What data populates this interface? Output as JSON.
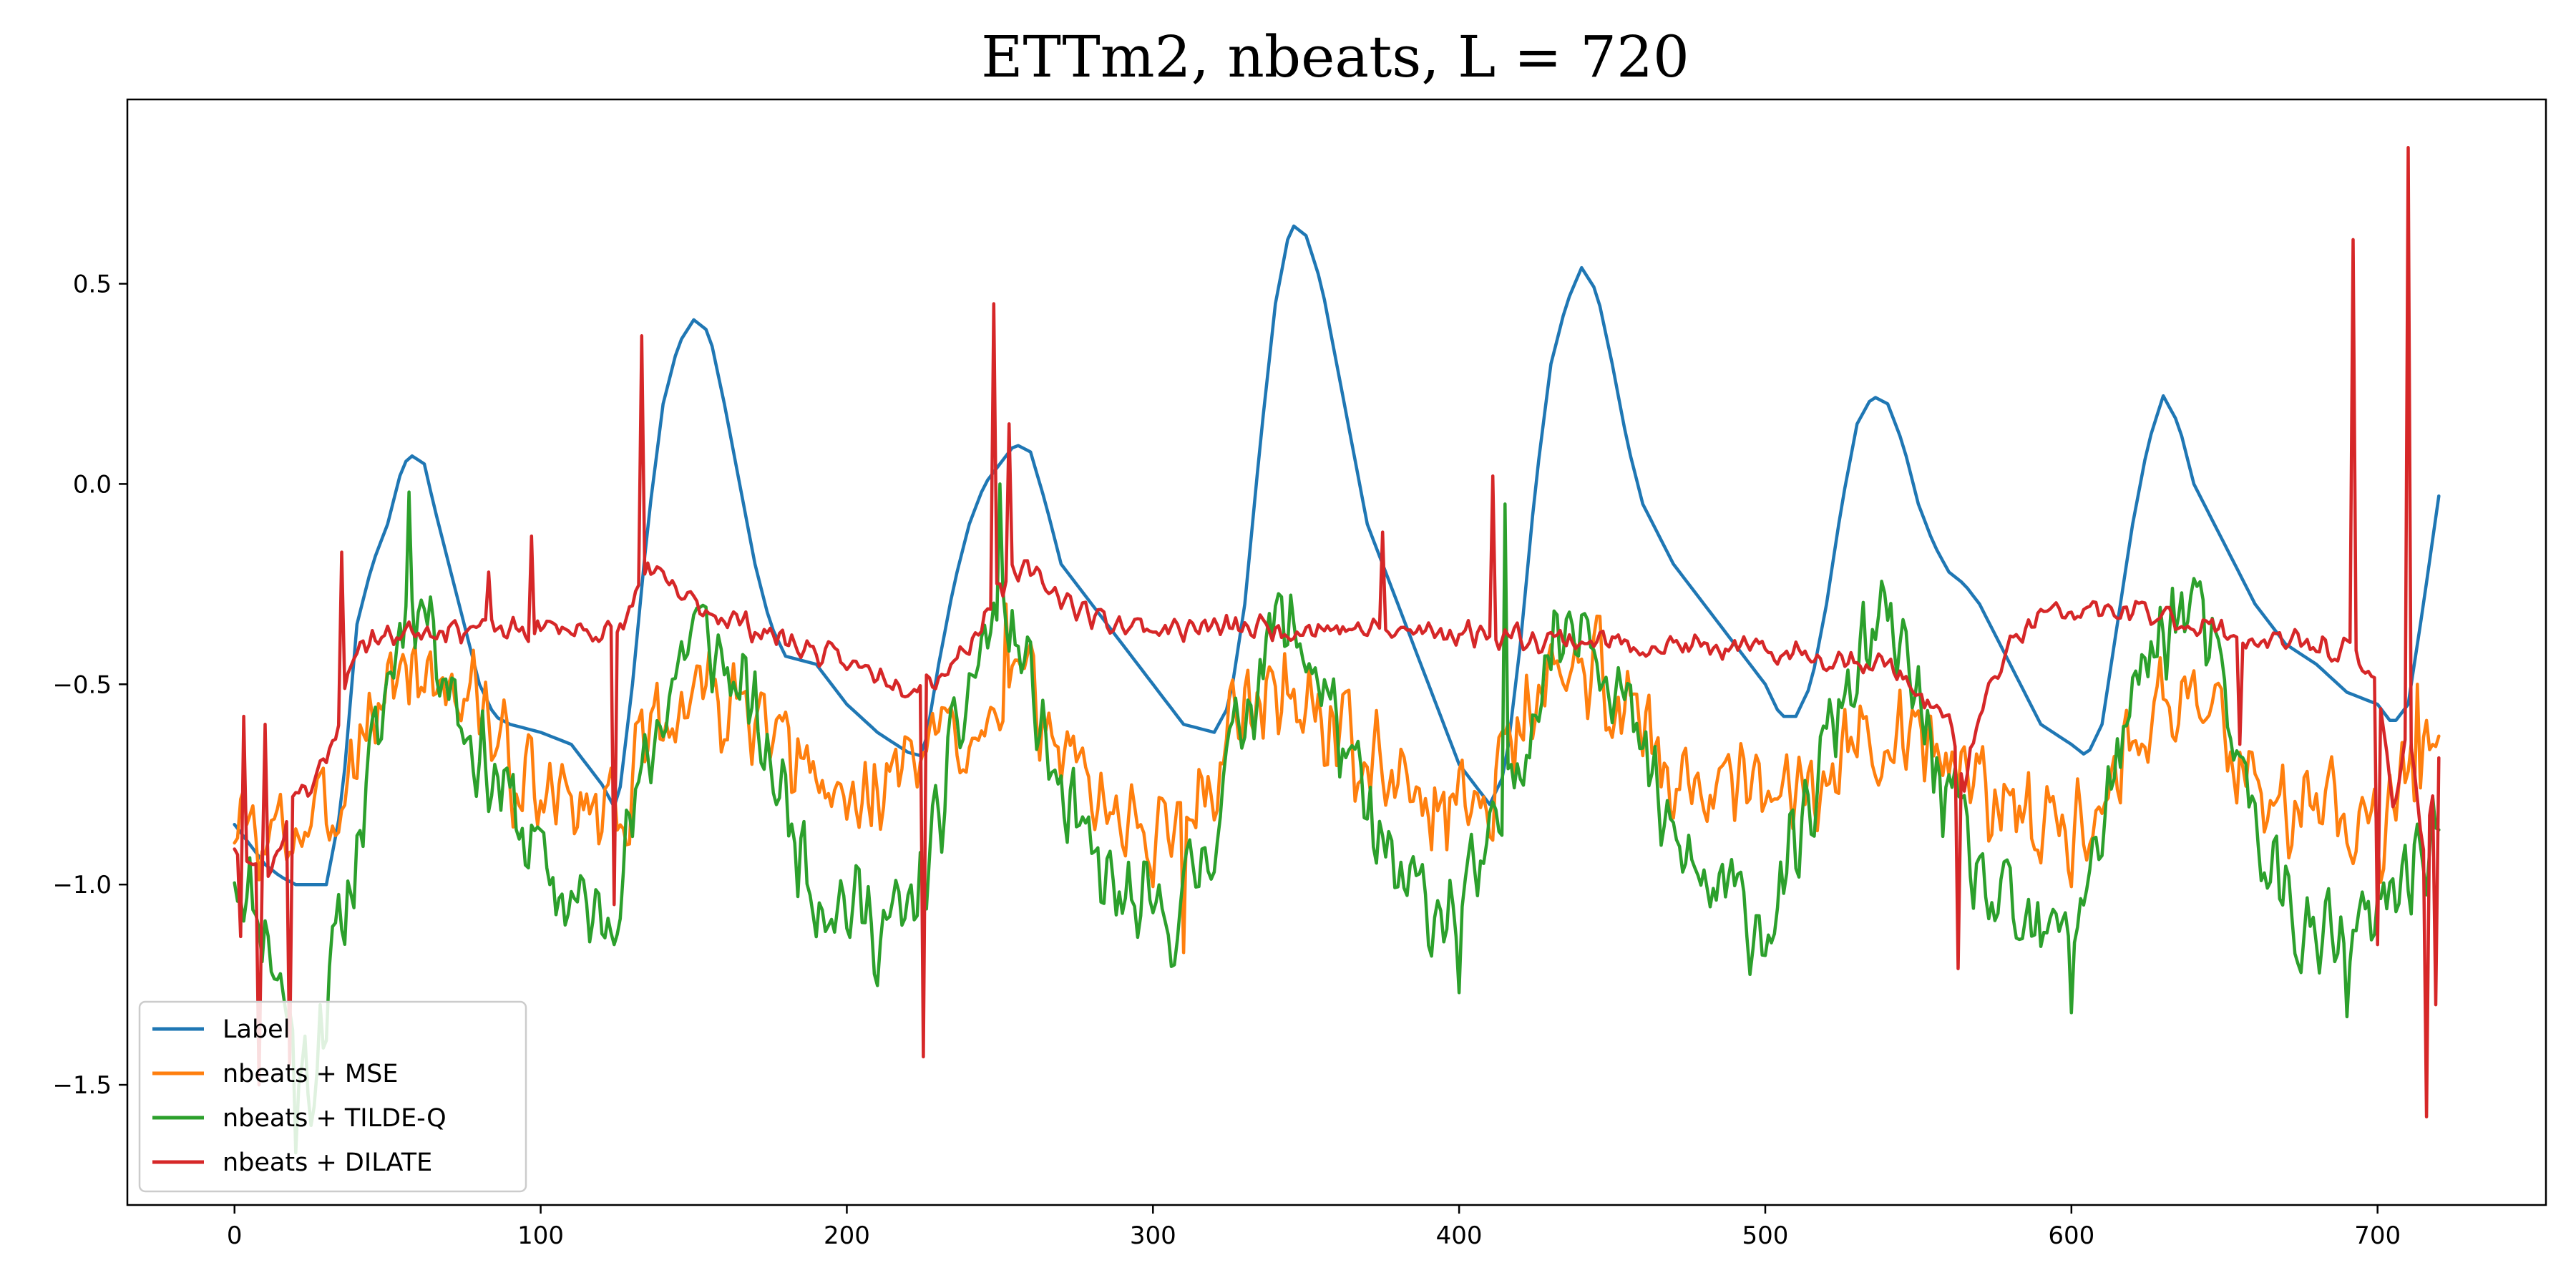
{
  "chart_data": {
    "type": "line",
    "title": "ETTm2, nbeats, L = 720",
    "xlabel": "",
    "ylabel": "",
    "xlim": [
      -35,
      755
    ],
    "ylim": [
      -1.8,
      0.96
    ],
    "xticks": [
      0,
      100,
      200,
      300,
      400,
      500,
      600,
      700
    ],
    "yticks": [
      -1.5,
      -1.0,
      -0.5,
      0.0,
      0.5
    ],
    "ytick_labels": [
      "−1.5",
      "−1.0",
      "−0.5",
      "0.0",
      "0.5"
    ],
    "grid": false,
    "legend_position": "lower-left",
    "series": [
      {
        "name": "Label",
        "color": "#1f77b4",
        "kind": "smooth",
        "x": [
          0,
          5,
          10,
          15,
          20,
          25,
          30,
          35,
          40,
          45,
          50,
          55,
          58,
          62,
          65,
          70,
          75,
          80,
          85,
          90,
          100,
          110,
          120,
          125,
          130,
          135,
          140,
          145,
          150,
          155,
          160,
          165,
          170,
          175,
          180,
          190,
          200,
          210,
          220,
          225,
          230,
          235,
          240,
          245,
          250,
          255,
          260,
          265,
          270,
          280,
          290,
          300,
          310,
          320,
          325,
          330,
          335,
          340,
          345,
          350,
          355,
          360,
          365,
          370,
          380,
          390,
          400,
          410,
          415,
          420,
          425,
          430,
          435,
          440,
          445,
          450,
          455,
          460,
          470,
          480,
          490,
          500,
          505,
          510,
          515,
          520,
          525,
          530,
          535,
          540,
          545,
          550,
          555,
          560,
          565,
          570,
          580,
          590,
          600,
          605,
          610,
          615,
          620,
          625,
          630,
          635,
          640,
          650,
          660,
          670,
          680,
          690,
          700,
          705,
          710,
          715,
          720
        ],
        "y": [
          -0.85,
          -0.9,
          -0.95,
          -0.98,
          -1.0,
          -1.0,
          -1.0,
          -0.8,
          -0.35,
          -0.2,
          -0.1,
          0.05,
          0.07,
          0.05,
          -0.05,
          -0.2,
          -0.35,
          -0.5,
          -0.58,
          -0.6,
          -0.62,
          -0.65,
          -0.75,
          -0.82,
          -0.5,
          -0.1,
          0.2,
          0.35,
          0.41,
          0.38,
          0.2,
          0.0,
          -0.2,
          -0.35,
          -0.43,
          -0.45,
          -0.55,
          -0.62,
          -0.67,
          -0.68,
          -0.45,
          -0.25,
          -0.1,
          0.0,
          0.05,
          0.1,
          0.08,
          -0.05,
          -0.2,
          -0.3,
          -0.4,
          -0.5,
          -0.6,
          -0.62,
          -0.55,
          -0.3,
          0.1,
          0.45,
          0.65,
          0.62,
          0.5,
          0.3,
          0.1,
          -0.1,
          -0.3,
          -0.5,
          -0.7,
          -0.8,
          -0.72,
          -0.4,
          0.0,
          0.3,
          0.45,
          0.54,
          0.48,
          0.3,
          0.1,
          -0.05,
          -0.2,
          -0.3,
          -0.4,
          -0.5,
          -0.58,
          -0.58,
          -0.5,
          -0.3,
          -0.05,
          0.15,
          0.22,
          0.2,
          0.1,
          -0.05,
          -0.15,
          -0.22,
          -0.25,
          -0.3,
          -0.45,
          -0.6,
          -0.65,
          -0.68,
          -0.6,
          -0.35,
          -0.1,
          0.1,
          0.22,
          0.15,
          0.0,
          -0.15,
          -0.3,
          -0.4,
          -0.45,
          -0.52,
          -0.55,
          -0.6,
          -0.55,
          -0.3,
          -0.03
        ]
      },
      {
        "name": "nbeats + MSE",
        "color": "#ff7f0e",
        "kind": "noisy",
        "seed": 3,
        "noise": 0.16,
        "x": [
          0,
          10,
          20,
          30,
          40,
          50,
          60,
          70,
          80,
          90,
          100,
          110,
          120,
          130,
          140,
          150,
          160,
          170,
          180,
          190,
          200,
          210,
          220,
          230,
          240,
          250,
          260,
          270,
          280,
          290,
          300,
          310,
          320,
          330,
          340,
          350,
          360,
          370,
          380,
          390,
          400,
          410,
          420,
          430,
          440,
          450,
          460,
          470,
          480,
          490,
          500,
          510,
          520,
          530,
          540,
          550,
          560,
          570,
          580,
          590,
          600,
          610,
          620,
          630,
          640,
          650,
          660,
          670,
          680,
          690,
          700,
          710,
          720
        ],
        "y": [
          -0.85,
          -0.9,
          -0.85,
          -0.85,
          -0.65,
          -0.5,
          -0.45,
          -0.5,
          -0.55,
          -0.7,
          -0.8,
          -0.8,
          -0.8,
          -0.75,
          -0.6,
          -0.5,
          -0.55,
          -0.6,
          -0.7,
          -0.75,
          -0.8,
          -0.75,
          -0.7,
          -0.65,
          -0.6,
          -0.5,
          -0.55,
          -0.65,
          -0.75,
          -0.85,
          -0.9,
          -0.8,
          -0.7,
          -0.55,
          -0.5,
          -0.55,
          -0.6,
          -0.7,
          -0.75,
          -0.8,
          -0.8,
          -0.75,
          -0.6,
          -0.5,
          -0.45,
          -0.5,
          -0.6,
          -0.7,
          -0.75,
          -0.8,
          -0.8,
          -0.75,
          -0.7,
          -0.65,
          -0.6,
          -0.65,
          -0.7,
          -0.75,
          -0.8,
          -0.85,
          -0.85,
          -0.75,
          -0.6,
          -0.5,
          -0.55,
          -0.65,
          -0.75,
          -0.8,
          -0.8,
          -0.8,
          -0.85,
          -0.75,
          -0.7
        ]
      },
      {
        "name": "nbeats + TILDE-Q",
        "color": "#2ca02c",
        "kind": "noisy",
        "seed": 11,
        "noise": 0.16,
        "x": [
          0,
          10,
          20,
          25,
          30,
          40,
          50,
          57,
          65,
          75,
          90,
          100,
          110,
          120,
          130,
          140,
          150,
          160,
          170,
          180,
          190,
          200,
          210,
          220,
          230,
          240,
          250,
          260,
          270,
          280,
          290,
          300,
          310,
          320,
          330,
          340,
          350,
          360,
          370,
          380,
          390,
          400,
          410,
          420,
          430,
          440,
          450,
          460,
          470,
          480,
          490,
          500,
          510,
          520,
          530,
          540,
          550,
          560,
          570,
          580,
          590,
          600,
          610,
          620,
          630,
          640,
          650,
          660,
          670,
          680,
          690,
          700,
          710,
          720
        ],
        "y": [
          -0.95,
          -1.1,
          -1.4,
          -1.5,
          -1.3,
          -0.9,
          -0.5,
          -0.25,
          -0.35,
          -0.6,
          -0.8,
          -0.95,
          -1.05,
          -1.1,
          -0.85,
          -0.55,
          -0.35,
          -0.45,
          -0.6,
          -0.8,
          -1.0,
          -1.05,
          -1.1,
          -1.1,
          -0.85,
          -0.5,
          -0.3,
          -0.5,
          -0.8,
          -0.95,
          -1.05,
          -1.1,
          -1.05,
          -0.85,
          -0.55,
          -0.35,
          -0.4,
          -0.6,
          -0.85,
          -1.0,
          -1.05,
          -1.05,
          -0.95,
          -0.65,
          -0.4,
          -0.3,
          -0.45,
          -0.7,
          -0.9,
          -1.0,
          -1.05,
          -1.1,
          -0.95,
          -0.65,
          -0.45,
          -0.35,
          -0.55,
          -0.8,
          -1.0,
          -1.1,
          -1.15,
          -1.1,
          -0.85,
          -0.55,
          -0.35,
          -0.3,
          -0.55,
          -0.85,
          -1.05,
          -1.15,
          -1.15,
          -1.1,
          -0.95,
          -0.85
        ]
      },
      {
        "name": "nbeats + DILATE",
        "color": "#d62728",
        "kind": "noisy",
        "seed": 23,
        "noise": 0.04,
        "x": [
          0,
          5,
          10,
          15,
          20,
          25,
          30,
          35,
          40,
          50,
          60,
          70,
          80,
          90,
          100,
          110,
          120,
          125,
          130,
          135,
          140,
          150,
          160,
          170,
          180,
          190,
          200,
          210,
          220,
          230,
          240,
          250,
          260,
          270,
          280,
          290,
          300,
          320,
          340,
          360,
          380,
          400,
          420,
          440,
          460,
          480,
          500,
          520,
          540,
          550,
          560,
          565,
          570,
          580,
          590,
          600,
          610,
          620,
          630,
          640,
          650,
          660,
          670,
          680,
          690,
          700,
          705,
          710,
          715,
          720
        ],
        "y": [
          -0.9,
          -0.95,
          -1.0,
          -0.9,
          -0.75,
          -0.75,
          -0.7,
          -0.55,
          -0.4,
          -0.38,
          -0.36,
          -0.36,
          -0.36,
          -0.37,
          -0.36,
          -0.36,
          -0.37,
          -0.38,
          -0.3,
          -0.2,
          -0.25,
          -0.3,
          -0.33,
          -0.36,
          -0.39,
          -0.42,
          -0.45,
          -0.47,
          -0.5,
          -0.48,
          -0.4,
          -0.25,
          -0.22,
          -0.28,
          -0.33,
          -0.35,
          -0.36,
          -0.36,
          -0.36,
          -0.36,
          -0.37,
          -0.37,
          -0.38,
          -0.39,
          -0.4,
          -0.41,
          -0.42,
          -0.43,
          -0.45,
          -0.52,
          -0.6,
          -0.75,
          -0.58,
          -0.4,
          -0.33,
          -0.32,
          -0.32,
          -0.32,
          -0.33,
          -0.35,
          -0.37,
          -0.39,
          -0.4,
          -0.4,
          -0.42,
          -0.5,
          -0.8,
          -0.6,
          -0.9,
          -0.7
        ]
      }
    ],
    "spikes": {
      "nbeats + MSE": [
        [
          252,
          -0.3
        ],
        [
          310,
          -1.17
        ],
        [
          713,
          -0.5
        ],
        [
          718,
          -0.65
        ]
      ],
      "nbeats + TILDE-Q": [
        [
          20,
          -1.67
        ],
        [
          28,
          -1.3
        ],
        [
          57,
          -0.02
        ],
        [
          250,
          0.0
        ],
        [
          400,
          -1.27
        ],
        [
          415,
          -0.05
        ],
        [
          600,
          -1.32
        ],
        [
          690,
          -1.33
        ]
      ],
      "nbeats + DILATE": [
        [
          2,
          -1.13
        ],
        [
          3,
          -0.58
        ],
        [
          8,
          -1.5
        ],
        [
          10,
          -0.6
        ],
        [
          18,
          -1.45
        ],
        [
          35,
          -0.17
        ],
        [
          83,
          -0.22
        ],
        [
          97,
          -0.13
        ],
        [
          124,
          -1.05
        ],
        [
          133,
          0.37
        ],
        [
          248,
          0.45
        ],
        [
          225,
          -1.43
        ],
        [
          253,
          0.15
        ],
        [
          375,
          -0.12
        ],
        [
          411,
          0.02
        ],
        [
          563,
          -1.21
        ],
        [
          655,
          -0.65
        ],
        [
          692,
          0.61
        ],
        [
          700,
          -1.15
        ],
        [
          710,
          0.84
        ],
        [
          716,
          -1.58
        ],
        [
          719,
          -1.3
        ]
      ]
    }
  }
}
